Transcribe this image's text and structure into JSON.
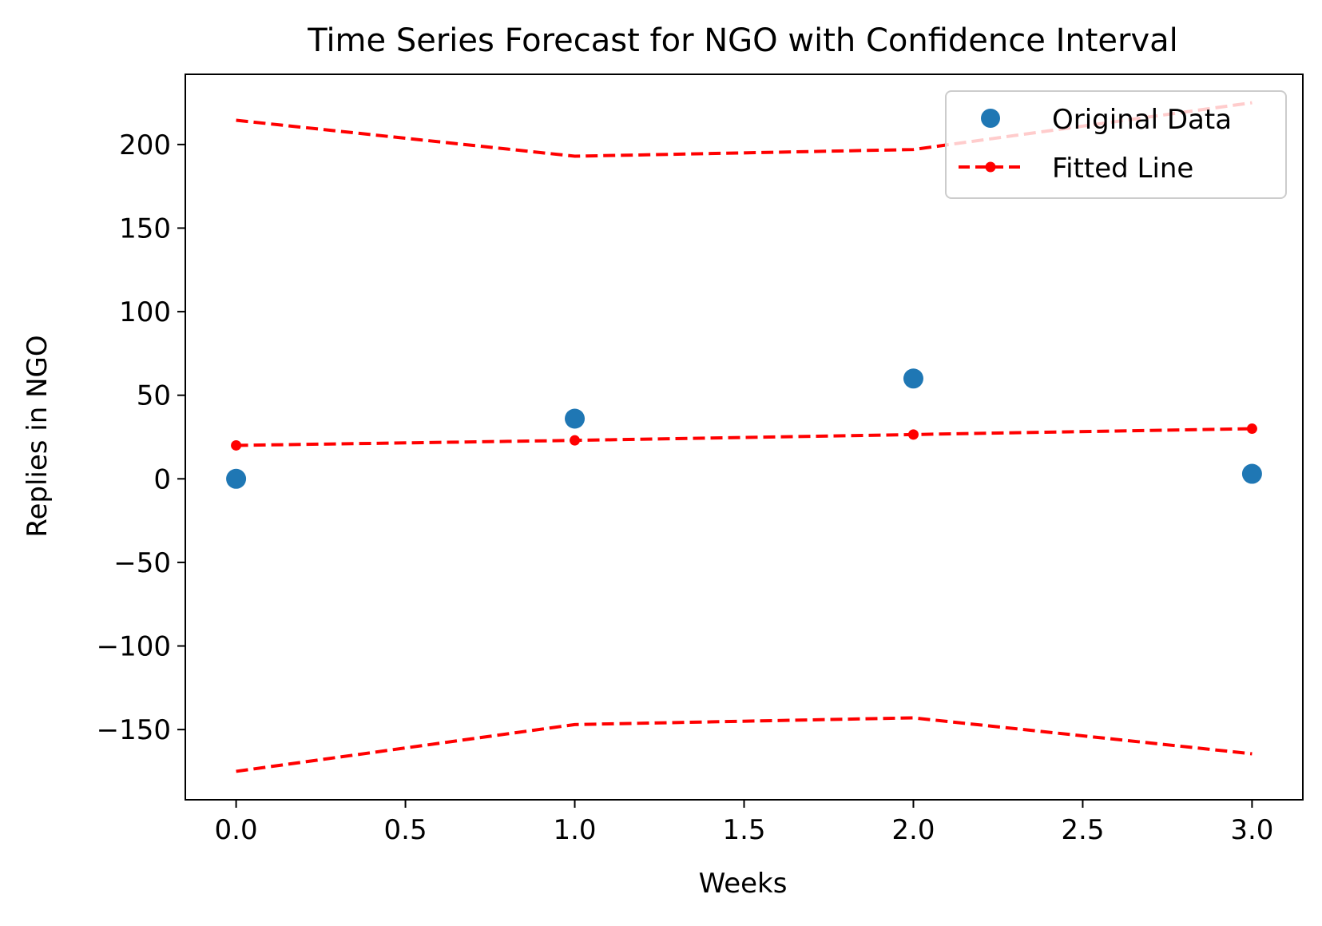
{
  "chart_data": {
    "type": "line",
    "title": "Time Series Forecast for NGO with Confidence Interval",
    "xlabel": "Weeks",
    "ylabel": "Replies in NGO",
    "xlim": [
      -0.15,
      3.15
    ],
    "ylim": [
      -192,
      242
    ],
    "x_ticks": [
      0.0,
      0.5,
      1.0,
      1.5,
      2.0,
      2.5,
      3.0
    ],
    "x_tick_labels": [
      "0.0",
      "0.5",
      "1.0",
      "1.5",
      "2.0",
      "2.5",
      "3.0"
    ],
    "y_ticks": [
      -150,
      -100,
      -50,
      0,
      50,
      100,
      150,
      200
    ],
    "y_tick_labels": [
      "−150",
      "−100",
      "−50",
      "0",
      "50",
      "100",
      "150",
      "200"
    ],
    "grid": false,
    "legend_position": "top-right",
    "series": [
      {
        "name": "Original Data",
        "style": "markers",
        "color": "#1f77b4",
        "x": [
          0,
          1,
          2,
          3
        ],
        "values": [
          0,
          36,
          60,
          3
        ]
      },
      {
        "name": "Fitted Line",
        "style": "dashed-line-markers",
        "color": "#ff0000",
        "x": [
          0,
          1,
          2,
          3
        ],
        "values": [
          20,
          23,
          26.5,
          30
        ]
      },
      {
        "style": "dashed-line",
        "color": "#ff0000",
        "x": [
          0,
          1,
          2,
          3
        ],
        "values": [
          214.5,
          193,
          197,
          225
        ]
      },
      {
        "style": "dashed-line",
        "color": "#ff0000",
        "x": [
          0,
          1,
          2,
          3
        ],
        "values": [
          -175,
          -147,
          -143,
          -164.5
        ]
      }
    ]
  }
}
